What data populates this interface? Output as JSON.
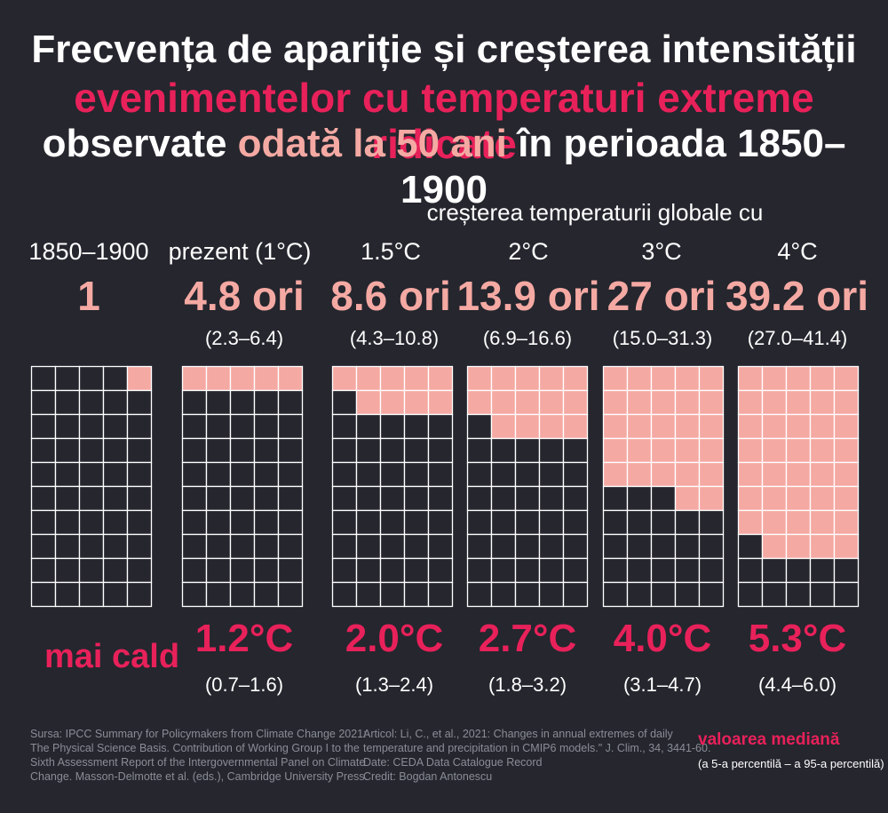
{
  "title": {
    "line1": "Frecvența de apariție și creșterea intensității",
    "line2": "evenimentelor cu temperaturi extreme ridicate",
    "line3_pre": "observate ",
    "line3_highlight": "odată la 50 ani",
    "line3_post": " în perioada 1850–1900"
  },
  "subheader": "creșterea temperaturii globale cu",
  "warm_label": "mai cald",
  "colors": {
    "background": "#25262e",
    "accent_red": "#e8215a",
    "accent_pink": "#f5a9a3",
    "grid_line": "#ffffff"
  },
  "chart_data": {
    "type": "table",
    "grid": {
      "columns": 5,
      "rows": 10,
      "cells_per_grid": 50
    },
    "columns": [
      {
        "label": "1850–1900",
        "frequency": "1",
        "frequency_range": "",
        "filled_cells": 1,
        "warming": "",
        "warming_range": ""
      },
      {
        "label": "prezent (1°C)",
        "frequency": "4.8 ori",
        "frequency_range": "(2.3–6.4)",
        "filled_cells": 5,
        "warming": "1.2°C",
        "warming_range": "(0.7–1.6)"
      },
      {
        "label": "1.5°C",
        "frequency": "8.6 ori",
        "frequency_range": "(4.3–10.8)",
        "filled_cells": 9,
        "warming": "2.0°C",
        "warming_range": "(1.3–2.4)"
      },
      {
        "label": "2°C",
        "frequency": "13.9 ori",
        "frequency_range": "(6.9–16.6)",
        "filled_cells": 14,
        "warming": "2.7°C",
        "warming_range": "(1.8–3.2)"
      },
      {
        "label": "3°C",
        "frequency": "27 ori",
        "frequency_range": "(15.0–31.3)",
        "filled_cells": 27,
        "warming": "4.0°C",
        "warming_range": "(3.1–4.7)"
      },
      {
        "label": "4°C",
        "frequency": "39.2 ori",
        "frequency_range": "(27.0–41.4)",
        "filled_cells": 39,
        "warming": "5.3°C",
        "warming_range": "(4.4–6.0)"
      }
    ]
  },
  "footer": {
    "source_lines": [
      "Sursa: IPCC Summary for Policymakers from Climate Change 2021:",
      "The Physical Science Basis. Contribution of Working Group I to the",
      "Sixth Assessment Report of the Intergovernmental Panel on Climate",
      "Change. Masson-Delmotte et al. (eds.), Cambridge University Press."
    ],
    "article_lines": [
      "Articol:  Li, C., et al., 2021: Changes in annual extremes of daily",
      "temperature and precipitation in CMIP6 models.\" J. Clim., 34, 3441-60.",
      "Date: CEDA Data Catalogue Record",
      "Credit: Bogdan Antonescu"
    ]
  },
  "legend": {
    "title": "valoarea mediană",
    "subtitle": "(a 5-a percentilă – a 95-a percentilă)"
  }
}
